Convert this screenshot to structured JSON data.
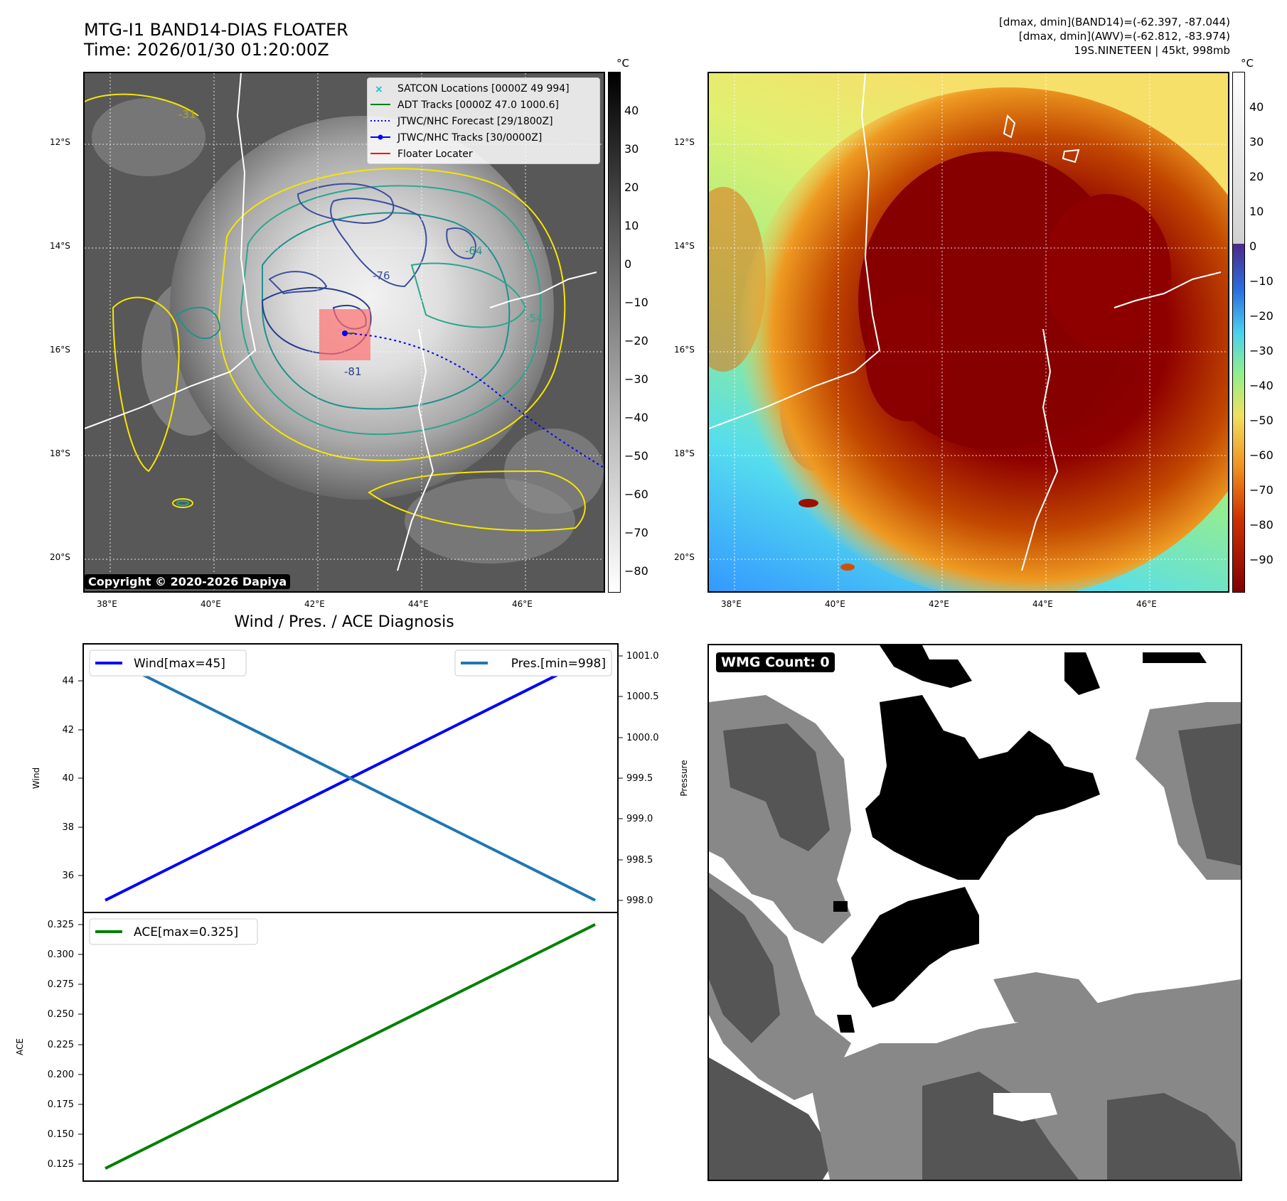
{
  "header": {
    "title_line1": "MTG-I1 BAND14-DIAS FLOATER",
    "title_line2": "Time: 2026/01/30 01:20:00Z",
    "info_line1": "[dmax, dmin](BAND14)=(-62.397, -87.044)",
    "info_line2": "[dmax, dmin](AWV)=(-62.812, -83.974)",
    "info_line3": "19S.NINETEEN | 45kt, 998mb"
  },
  "map": {
    "lat_labels": [
      "12°S",
      "14°S",
      "16°S",
      "18°S",
      "20°S"
    ],
    "lon_labels": [
      "38°E",
      "40°E",
      "42°E",
      "44°E",
      "46°E"
    ],
    "copyright": "Copyright © 2020-2026 Dapiya",
    "legend": [
      {
        "label": "SATCON Locations [0000Z 49 994]",
        "color": "#17becf",
        "style": "x"
      },
      {
        "label": "ADT Tracks [0000Z 47.0 1000.6]",
        "color": "#008000",
        "style": "line"
      },
      {
        "label": "JTWC/NHC Forecast [29/1800Z]",
        "color": "#0000ff",
        "style": "dotted"
      },
      {
        "label": "JTWC/NHC Tracks [30/0000Z]",
        "color": "#0000ff",
        "style": "line-dot"
      },
      {
        "label": "Floater Locater",
        "color": "#ff0000",
        "style": "line"
      }
    ],
    "contour_labels": [
      "-31",
      "-54",
      "-64",
      "-76",
      "-81"
    ]
  },
  "colorbar_left": {
    "unit": "°C",
    "ticks": [
      "40",
      "30",
      "20",
      "10",
      "0",
      "−10",
      "−20",
      "−30",
      "−40",
      "−50",
      "−60",
      "−70",
      "−80"
    ]
  },
  "colorbar_right": {
    "unit": "°C",
    "ticks": [
      "40",
      "30",
      "20",
      "10",
      "0",
      "−10",
      "−20",
      "−30",
      "−40",
      "−50",
      "−60",
      "−70",
      "−80",
      "−90"
    ]
  },
  "diagnosis": {
    "title": "Wind / Pres. / ACE Diagnosis",
    "wind_ylabel": "Wind",
    "pres_ylabel": "Pressure",
    "ace_ylabel": "ACE",
    "wind_ticks": [
      "44",
      "42",
      "40",
      "38",
      "36"
    ],
    "pres_ticks": [
      "1001.0",
      "1000.5",
      "1000.0",
      "999.5",
      "999.0",
      "998.5",
      "998.0"
    ],
    "ace_ticks": [
      "0.325",
      "0.300",
      "0.275",
      "0.250",
      "0.225",
      "0.200",
      "0.175",
      "0.150",
      "0.125"
    ],
    "legend_wind": "Wind[max=45]",
    "legend_pres": "Pres.[min=998]",
    "legend_ace": "ACE[max=0.325]"
  },
  "wmg": {
    "label": "WMG Count: 0"
  },
  "chart_data": [
    {
      "type": "line",
      "title": "Wind / Pres. / ACE Diagnosis",
      "series": [
        {
          "name": "Wind[max=45]",
          "axis": "left",
          "color": "#0000ff",
          "x": [
            0,
            1
          ],
          "values": [
            35,
            45
          ]
        },
        {
          "name": "Pres.[min=998]",
          "axis": "right",
          "color": "#1f77b4",
          "x": [
            0,
            1
          ],
          "values": [
            1001,
            998
          ]
        }
      ],
      "ylabel": "Wind",
      "y2label": "Pressure",
      "ylim": [
        34.5,
        45.5
      ],
      "y2lim": [
        997.85,
        1001.15
      ]
    },
    {
      "type": "line",
      "series": [
        {
          "name": "ACE[max=0.325]",
          "color": "#008000",
          "x": [
            0,
            1
          ],
          "values": [
            0.1225,
            0.325
          ]
        }
      ],
      "ylabel": "ACE",
      "ylim": [
        0.112,
        0.335
      ]
    }
  ]
}
